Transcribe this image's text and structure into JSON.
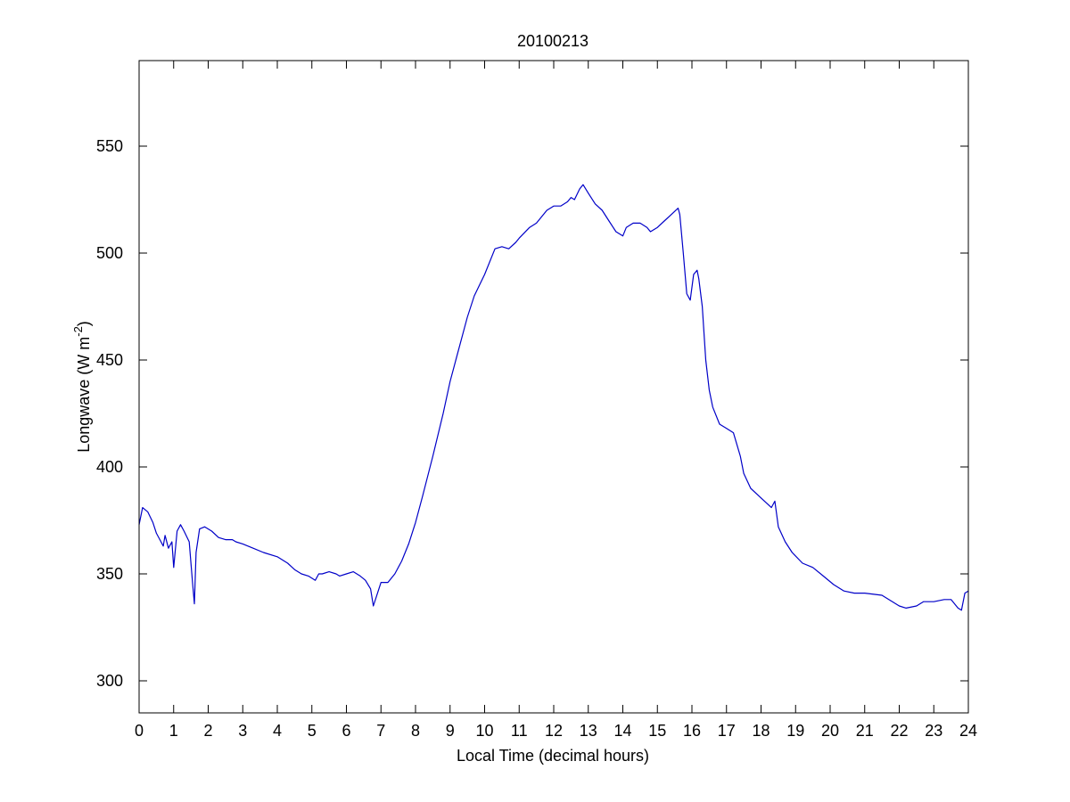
{
  "chart_data": {
    "type": "line",
    "title": "20100213",
    "xlabel": "Local Time (decimal hours)",
    "ylabel": {
      "prefix": "Longwave (W m",
      "superscript": "-2",
      "suffix": ")"
    },
    "xlim": [
      0,
      24
    ],
    "ylim": [
      285,
      590
    ],
    "xticks": [
      0,
      1,
      2,
      3,
      4,
      5,
      6,
      7,
      8,
      9,
      10,
      11,
      12,
      13,
      14,
      15,
      16,
      17,
      18,
      19,
      20,
      21,
      22,
      23,
      24
    ],
    "yticks": [
      300,
      350,
      400,
      450,
      500,
      550
    ],
    "grid": false,
    "colors": {
      "line": "#0000c8",
      "axes": "#000000",
      "background": "#ffffff"
    },
    "series": [
      {
        "x": [
          0,
          0.1,
          0.25,
          0.4,
          0.5,
          0.6,
          0.7,
          0.75,
          0.85,
          0.95,
          1.0,
          1.1,
          1.2,
          1.3,
          1.45,
          1.55,
          1.6,
          1.65,
          1.75,
          1.9,
          2.1,
          2.3,
          2.5,
          2.7,
          2.8,
          3.0,
          3.3,
          3.6,
          4.0,
          4.3,
          4.5,
          4.7,
          4.9,
          5.1,
          5.2,
          5.3,
          5.5,
          5.7,
          5.8,
          6.0,
          6.2,
          6.4,
          6.55,
          6.7,
          6.78,
          6.9,
          7.0,
          7.2,
          7.4,
          7.6,
          7.8,
          8.0,
          8.2,
          8.5,
          8.8,
          9.0,
          9.2,
          9.5,
          9.7,
          10.0,
          10.3,
          10.5,
          10.7,
          10.9,
          11.0,
          11.3,
          11.5,
          11.8,
          12.0,
          12.2,
          12.4,
          12.5,
          12.6,
          12.75,
          12.85,
          13.0,
          13.2,
          13.4,
          13.6,
          13.8,
          14.0,
          14.1,
          14.3,
          14.5,
          14.7,
          14.8,
          15.0,
          15.2,
          15.4,
          15.6,
          15.65,
          15.75,
          15.85,
          15.95,
          16.05,
          16.15,
          16.2,
          16.3,
          16.4,
          16.5,
          16.6,
          16.8,
          17.0,
          17.2,
          17.4,
          17.5,
          17.7,
          17.9,
          18.1,
          18.3,
          18.4,
          18.5,
          18.7,
          18.9,
          19.2,
          19.5,
          19.8,
          20.1,
          20.4,
          20.7,
          21.0,
          21.5,
          22.0,
          22.2,
          22.5,
          22.7,
          23.0,
          23.3,
          23.5,
          23.7,
          23.8,
          23.9,
          24.0
        ],
        "y": [
          373,
          381,
          379,
          374,
          369,
          366,
          363,
          368,
          362,
          365,
          353,
          370,
          373,
          370,
          365,
          345,
          336,
          360,
          371,
          372,
          370,
          367,
          366,
          366,
          365,
          364,
          362,
          360,
          358,
          355,
          352,
          350,
          349,
          347,
          350,
          350,
          351,
          350,
          349,
          350,
          351,
          349,
          347,
          343,
          335,
          341,
          346,
          346,
          350,
          356,
          364,
          374,
          386,
          405,
          425,
          440,
          452,
          470,
          480,
          490,
          502,
          503,
          502,
          505,
          507,
          512,
          514,
          520,
          522,
          522,
          524,
          526,
          525,
          530,
          532,
          528,
          523,
          520,
          515,
          510,
          508,
          512,
          514,
          514,
          512,
          510,
          512,
          515,
          518,
          521,
          518,
          500,
          481,
          478,
          490,
          492,
          488,
          475,
          450,
          436,
          428,
          420,
          418,
          416,
          405,
          397,
          390,
          387,
          384,
          381,
          384,
          372,
          365,
          360,
          355,
          353,
          349,
          345,
          342,
          341,
          341,
          340,
          335,
          334,
          335,
          337,
          337,
          338,
          338,
          334,
          333,
          341,
          342
        ]
      }
    ]
  }
}
